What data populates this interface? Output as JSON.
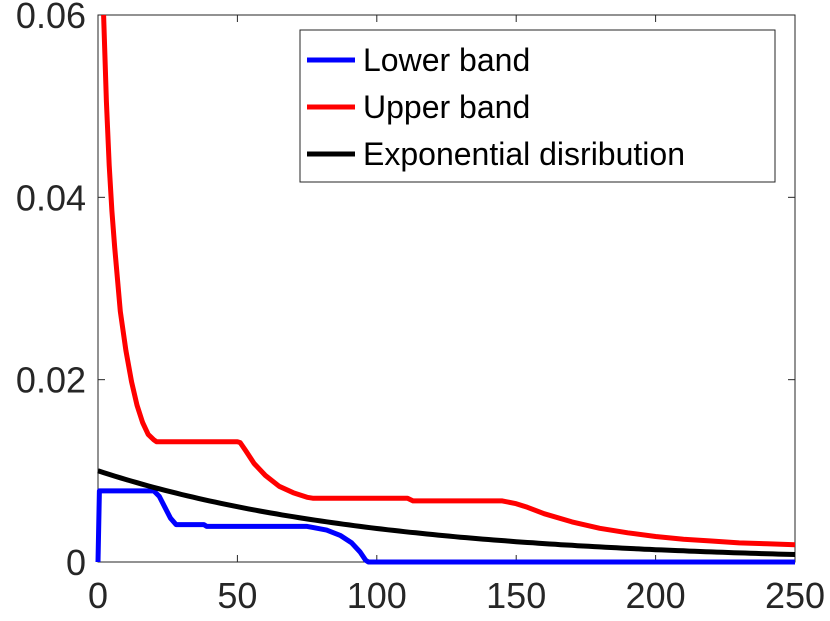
{
  "chart_data": {
    "type": "line",
    "title": "",
    "xlabel": "",
    "ylabel": "",
    "xlim": [
      0,
      250
    ],
    "ylim": [
      0,
      0.06
    ],
    "x_ticks": [
      0,
      50,
      100,
      150,
      200,
      250
    ],
    "x_tick_labels": [
      "0",
      "50",
      "100",
      "150",
      "200",
      "250"
    ],
    "y_ticks": [
      0,
      0.02,
      0.04,
      0.06
    ],
    "y_tick_labels": [
      "0",
      "0.02",
      "0.04",
      "0.06"
    ],
    "grid": false,
    "legend_position": "top-right",
    "series": [
      {
        "name": "Lower band",
        "color": "#0000ff",
        "points": [
          [
            0,
            0
          ],
          [
            0.5,
            0.0078
          ],
          [
            20,
            0.0078
          ],
          [
            22,
            0.0072
          ],
          [
            24,
            0.006
          ],
          [
            26,
            0.0048
          ],
          [
            28,
            0.0041
          ],
          [
            38,
            0.0041
          ],
          [
            39,
            0.0039
          ],
          [
            75,
            0.0039
          ],
          [
            77,
            0.0038
          ],
          [
            82,
            0.0035
          ],
          [
            87,
            0.0029
          ],
          [
            91,
            0.0021
          ],
          [
            94,
            0.0011
          ],
          [
            96,
            0.0002
          ],
          [
            97,
            0
          ],
          [
            250,
            0
          ]
        ]
      },
      {
        "name": "Upper band",
        "color": "#ff0000",
        "points": [
          [
            2,
            0.06
          ],
          [
            3,
            0.0505
          ],
          [
            4,
            0.0435
          ],
          [
            5,
            0.0385
          ],
          [
            6,
            0.0345
          ],
          [
            7,
            0.031
          ],
          [
            8,
            0.0275
          ],
          [
            10,
            0.0232
          ],
          [
            12,
            0.0198
          ],
          [
            14,
            0.0172
          ],
          [
            16,
            0.0153
          ],
          [
            18,
            0.014
          ],
          [
            20,
            0.0134
          ],
          [
            21,
            0.0132
          ],
          [
            50,
            0.0132
          ],
          [
            51,
            0.0131
          ],
          [
            53,
            0.0122
          ],
          [
            56,
            0.0108
          ],
          [
            60,
            0.0095
          ],
          [
            65,
            0.0083
          ],
          [
            70,
            0.0076
          ],
          [
            75,
            0.0071
          ],
          [
            77,
            0.007
          ],
          [
            111,
            0.007
          ],
          [
            113,
            0.0067
          ],
          [
            145,
            0.0067
          ],
          [
            150,
            0.0064
          ],
          [
            154,
            0.006
          ],
          [
            160,
            0.0053
          ],
          [
            170,
            0.0044
          ],
          [
            180,
            0.0037
          ],
          [
            190,
            0.0032
          ],
          [
            200,
            0.0028
          ],
          [
            210,
            0.0025
          ],
          [
            220,
            0.0023
          ],
          [
            230,
            0.0021
          ],
          [
            240,
            0.002
          ],
          [
            250,
            0.0019
          ]
        ]
      },
      {
        "name": "Exponential disribution",
        "color": "#000000",
        "function": "0.01*exp(-x/100)",
        "x_range": [
          0,
          250
        ]
      }
    ]
  }
}
